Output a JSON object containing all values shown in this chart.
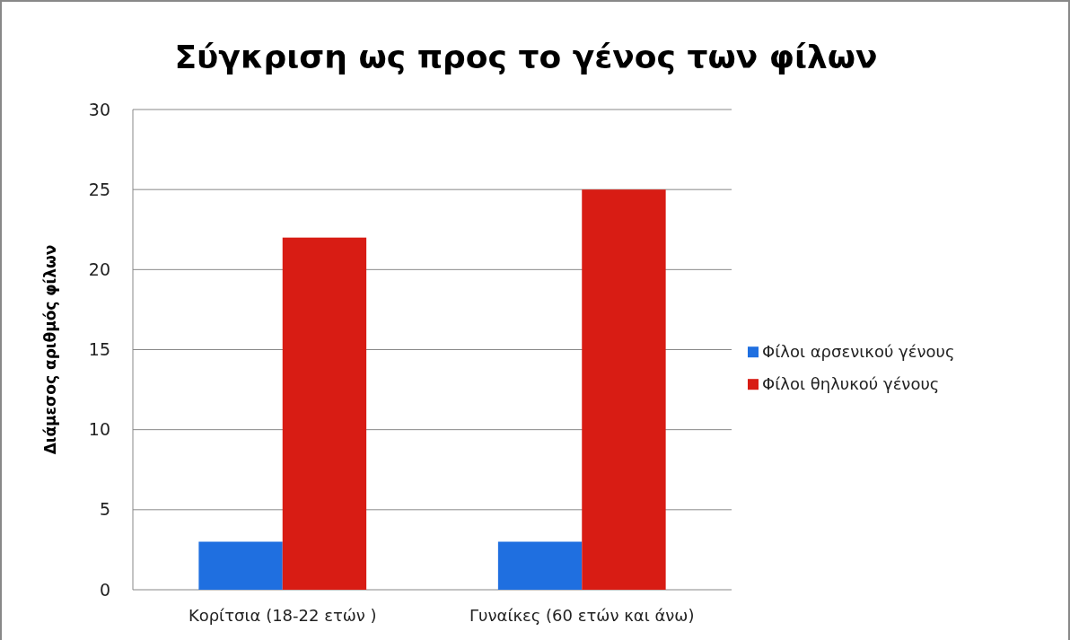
{
  "chart_data": {
    "type": "bar",
    "title": "Σύγκριση ως προς το γένος των φίλων",
    "ylabel": "Διάμεσος αριθμός φίλων",
    "categories": [
      "Κορίτσια  (18-22 ετών )",
      "Γυναίκες (60 ετών και άνω)"
    ],
    "series": [
      {
        "name": "Φίλοι αρσενικού γένους",
        "color": "#1f6fe0",
        "values": [
          3,
          3
        ]
      },
      {
        "name": "Φίλοι θηλυκού γένους",
        "color": "#d81c14",
        "values": [
          22,
          25
        ]
      }
    ],
    "ylim": [
      0,
      30
    ],
    "yticks": [
      0,
      5,
      10,
      15,
      20,
      25,
      30
    ],
    "grid": "y",
    "legend": "right"
  }
}
